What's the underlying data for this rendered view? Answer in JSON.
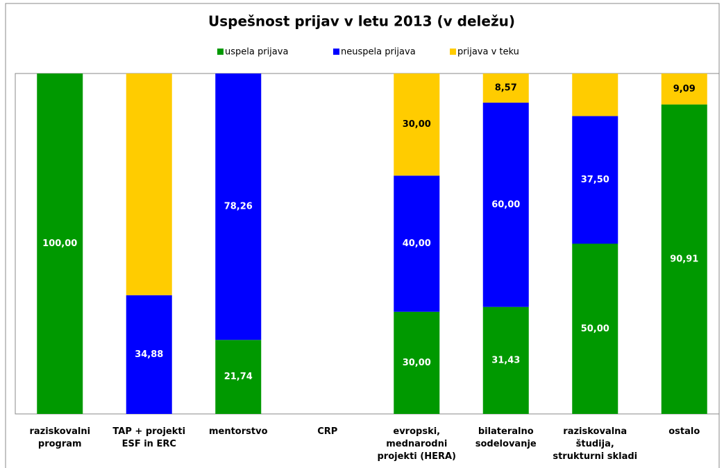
{
  "chart_data": {
    "type": "stacked_bar",
    "title": "Uspešnost  prijav v letu 2013 (v deležu)",
    "categories": [
      [
        "raziskovalni",
        "program"
      ],
      [
        "TAP + projekti",
        "ESF in ERC"
      ],
      [
        "mentorstvo"
      ],
      [
        "CRP"
      ],
      [
        "evropski,",
        "mednarodni",
        "projekti (HERA)"
      ],
      [
        "bilateralno",
        "sodelovanje"
      ],
      [
        "raziskovalna",
        "študija,",
        "strukturni skladi"
      ],
      [
        "ostalo"
      ]
    ],
    "series": [
      {
        "name": "uspela prijava",
        "color": "#009900",
        "values": [
          100,
          0,
          21.74,
          0,
          30,
          31.43,
          50,
          90.91
        ],
        "value_labels": [
          "100,00",
          null,
          "21,74",
          null,
          "30,00",
          "31,43",
          "50,00",
          "90,91"
        ]
      },
      {
        "name": "neuspela prijava",
        "color": "#0000ff",
        "values": [
          0,
          34.88,
          78.26,
          0,
          40,
          60,
          37.5,
          0
        ],
        "value_labels": [
          null,
          "34,88",
          "78,26",
          null,
          "40,00",
          "60,00",
          "37,50",
          null
        ]
      },
      {
        "name": "prijava v teku",
        "color": "#ffcc00",
        "values": [
          0,
          65.12,
          0,
          0,
          30,
          8.57,
          12.5,
          9.09
        ],
        "value_labels": [
          null,
          null,
          null,
          null,
          "30,00",
          "8,57",
          null,
          "9,09"
        ]
      }
    ],
    "ylim": [
      0,
      100
    ]
  }
}
